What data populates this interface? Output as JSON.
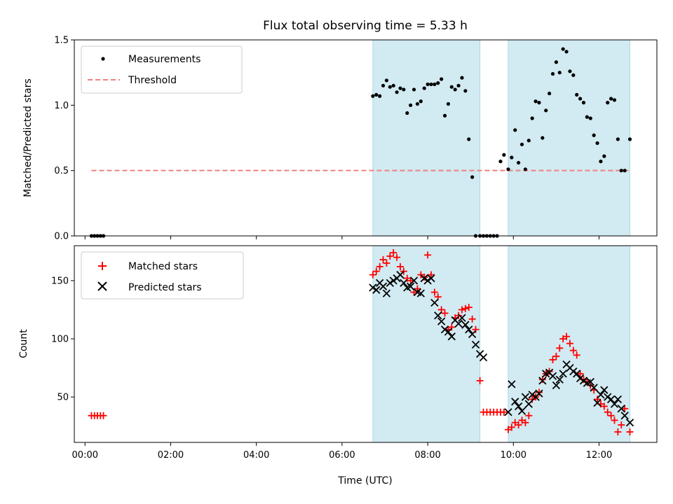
{
  "chart_data": [
    {
      "type": "scatter",
      "title": "Flux total observing time = 5.33 h",
      "xlabel": "",
      "ylabel": "Matched/Predicted stars",
      "xlim": [
        -0.25,
        13.35
      ],
      "ylim": [
        0,
        1.5
      ],
      "yticks": [
        0.0,
        0.5,
        1.0,
        1.5
      ],
      "ytick_labels": [
        "0.0",
        "0.5",
        "1.0",
        "1.5"
      ],
      "shaded_ranges": [
        [
          6.72,
          9.22
        ],
        [
          9.88,
          12.72
        ]
      ],
      "shade_color": "#add8e6",
      "legend_position": "upper-left",
      "threshold": {
        "name": "Threshold",
        "y": 0.5,
        "x_range": [
          0.15,
          12.72
        ],
        "color": "#f08080",
        "style": "dashed"
      },
      "series": [
        {
          "name": "Measurements",
          "marker": "dot",
          "color": "#000000",
          "x": [
            0.15,
            0.22,
            0.29,
            0.36,
            0.43,
            6.72,
            6.8,
            6.88,
            6.96,
            7.04,
            7.12,
            7.2,
            7.28,
            7.36,
            7.44,
            7.52,
            7.6,
            7.68,
            7.76,
            7.84,
            7.92,
            8.0,
            8.08,
            8.16,
            8.24,
            8.32,
            8.4,
            8.48,
            8.56,
            8.64,
            8.72,
            8.8,
            8.88,
            8.96,
            9.04,
            9.12,
            9.22,
            9.3,
            9.38,
            9.46,
            9.54,
            9.62,
            9.7,
            9.78,
            9.88,
            9.96,
            10.04,
            10.12,
            10.2,
            10.28,
            10.36,
            10.44,
            10.52,
            10.6,
            10.68,
            10.76,
            10.84,
            10.92,
            11.0,
            11.08,
            11.16,
            11.24,
            11.32,
            11.4,
            11.48,
            11.56,
            11.64,
            11.72,
            11.8,
            11.88,
            11.96,
            12.04,
            12.12,
            12.2,
            12.28,
            12.36,
            12.44,
            12.52,
            12.6,
            12.72
          ],
          "y": [
            0,
            0,
            0,
            0,
            0,
            1.07,
            1.08,
            1.07,
            1.15,
            1.19,
            1.14,
            1.15,
            1.1,
            1.13,
            1.12,
            0.94,
            1.0,
            1.12,
            1.01,
            1.03,
            1.13,
            1.16,
            1.16,
            1.16,
            1.17,
            1.2,
            0.92,
            1.01,
            1.14,
            1.12,
            1.15,
            1.21,
            1.11,
            0.74,
            0.45,
            0,
            0,
            0,
            0,
            0,
            0,
            0,
            0.57,
            0.62,
            0.51,
            0.6,
            0.81,
            0.56,
            0.7,
            0.51,
            0.73,
            0.9,
            1.03,
            1.02,
            0.75,
            0.96,
            1.09,
            1.24,
            1.33,
            1.25,
            1.43,
            1.41,
            1.26,
            1.23,
            1.08,
            1.05,
            1.02,
            0.91,
            0.9,
            0.77,
            0.71,
            0.57,
            0.61,
            1.02,
            1.05,
            1.04,
            0.74,
            0.5,
            0.5,
            0.74
          ]
        }
      ]
    },
    {
      "type": "scatter",
      "title": "",
      "xlabel": "Time (UTC)",
      "ylabel": "Count",
      "xlim": [
        -0.25,
        13.35
      ],
      "ylim": [
        11,
        180
      ],
      "xticks": [
        0,
        2,
        4,
        6,
        8,
        10,
        12
      ],
      "xtick_labels": [
        "00:00",
        "02:00",
        "04:00",
        "06:00",
        "08:00",
        "10:00",
        "12:00"
      ],
      "yticks": [
        50,
        100,
        150
      ],
      "ytick_labels": [
        "50",
        "100",
        "150"
      ],
      "shaded_ranges": [
        [
          6.72,
          9.22
        ],
        [
          9.88,
          12.72
        ]
      ],
      "shade_color": "#add8e6",
      "legend_position": "upper-left",
      "series": [
        {
          "name": "Matched stars",
          "marker": "plus",
          "color": "#ff0000",
          "x": [
            0.15,
            0.22,
            0.29,
            0.36,
            0.43,
            6.72,
            6.8,
            6.88,
            6.96,
            7.04,
            7.12,
            7.2,
            7.28,
            7.36,
            7.44,
            7.52,
            7.6,
            7.68,
            7.76,
            7.84,
            7.92,
            8.0,
            8.08,
            8.16,
            8.24,
            8.32,
            8.4,
            8.48,
            8.56,
            8.64,
            8.72,
            8.8,
            8.88,
            8.96,
            9.04,
            9.12,
            9.22,
            9.3,
            9.38,
            9.46,
            9.54,
            9.62,
            9.7,
            9.78,
            9.88,
            9.96,
            10.04,
            10.12,
            10.2,
            10.28,
            10.36,
            10.44,
            10.52,
            10.6,
            10.68,
            10.76,
            10.84,
            10.92,
            11.0,
            11.08,
            11.16,
            11.24,
            11.32,
            11.4,
            11.48,
            11.56,
            11.64,
            11.72,
            11.8,
            11.88,
            11.96,
            12.04,
            12.12,
            12.2,
            12.28,
            12.36,
            12.44,
            12.52,
            12.6,
            12.72
          ],
          "y": [
            34,
            34,
            34,
            34,
            34,
            155,
            158,
            162,
            168,
            165,
            171,
            174,
            170,
            162,
            158,
            152,
            150,
            140,
            143,
            155,
            153,
            172,
            155,
            140,
            136,
            125,
            122,
            108,
            110,
            118,
            120,
            125,
            126,
            127,
            117,
            108,
            64,
            37,
            37,
            37,
            37,
            37,
            37,
            37,
            22,
            24,
            28,
            26,
            30,
            28,
            34,
            48,
            50,
            54,
            65,
            70,
            72,
            82,
            85,
            92,
            100,
            102,
            96,
            90,
            86,
            70,
            65,
            63,
            60,
            56,
            48,
            44,
            42,
            37,
            34,
            30,
            20,
            26,
            40,
            20
          ]
        },
        {
          "name": "Predicted stars",
          "marker": "x",
          "color": "#000000",
          "x": [
            6.72,
            6.8,
            6.88,
            6.96,
            7.04,
            7.12,
            7.2,
            7.28,
            7.36,
            7.44,
            7.52,
            7.6,
            7.68,
            7.76,
            7.84,
            7.92,
            8.0,
            8.08,
            8.16,
            8.24,
            8.32,
            8.4,
            8.48,
            8.56,
            8.64,
            8.72,
            8.8,
            8.88,
            8.96,
            9.04,
            9.12,
            9.22,
            9.3,
            9.88,
            9.96,
            10.04,
            10.12,
            10.2,
            10.28,
            10.36,
            10.44,
            10.52,
            10.6,
            10.68,
            10.76,
            10.84,
            10.92,
            11.0,
            11.08,
            11.16,
            11.24,
            11.32,
            11.4,
            11.48,
            11.56,
            11.64,
            11.72,
            11.8,
            11.88,
            11.96,
            12.04,
            12.12,
            12.2,
            12.28,
            12.36,
            12.44,
            12.52,
            12.6,
            12.72
          ],
          "y": [
            144,
            142,
            148,
            145,
            139,
            148,
            150,
            152,
            155,
            148,
            144,
            145,
            150,
            140,
            139,
            152,
            150,
            152,
            131,
            120,
            115,
            108,
            106,
            102,
            116,
            113,
            118,
            112,
            108,
            104,
            95,
            87,
            84,
            37,
            61,
            46,
            42,
            38,
            50,
            44,
            52,
            50,
            53,
            64,
            70,
            71,
            68,
            60,
            65,
            70,
            78,
            75,
            72,
            70,
            66,
            64,
            62,
            63,
            58,
            45,
            52,
            56,
            50,
            48,
            44,
            48,
            40,
            34,
            28
          ]
        }
      ]
    }
  ]
}
